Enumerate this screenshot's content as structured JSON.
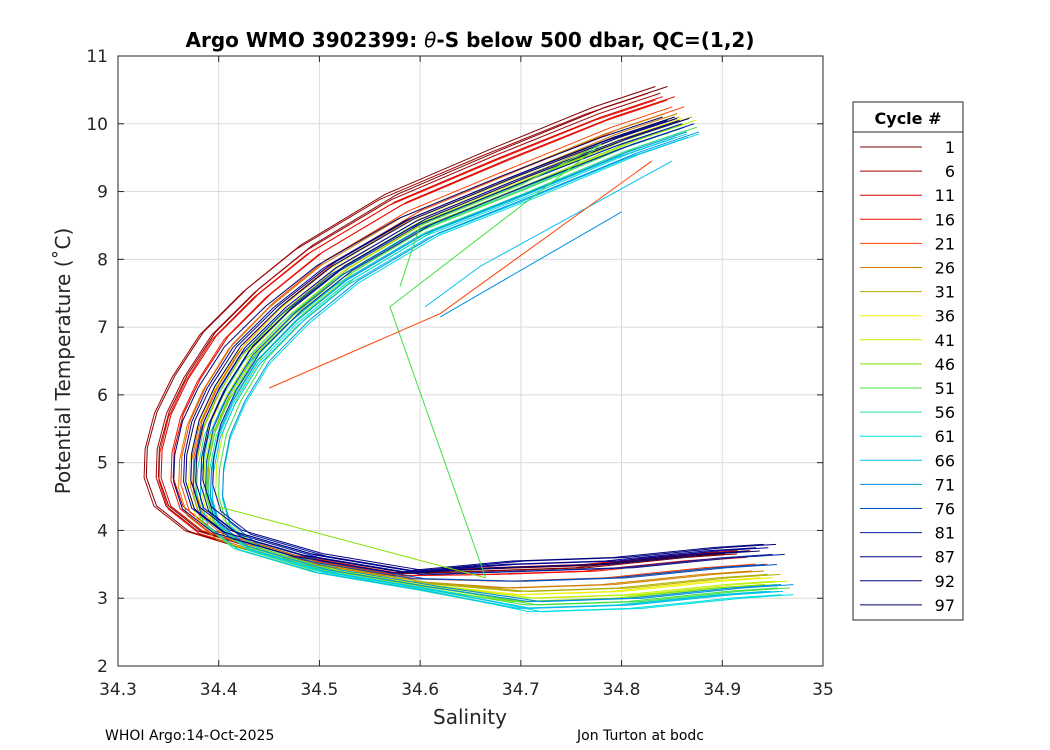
{
  "chart_data": {
    "type": "line",
    "title_prefix": "Argo WMO 3902399: ",
    "title_theta": "θ",
    "title_suffix": "-S below 500 dbar,  QC=(1,2)",
    "xlabel": "Salinity",
    "ylabel": "Potential Temperature (˚C)",
    "xlim": [
      34.3,
      35
    ],
    "ylim": [
      2,
      11
    ],
    "xticks": [
      "34.3",
      "34.4",
      "34.5",
      "34.6",
      "34.7",
      "34.8",
      "34.9",
      "35"
    ],
    "yticks": [
      "2",
      "3",
      "4",
      "5",
      "6",
      "7",
      "8",
      "9",
      "10",
      "11"
    ],
    "grid": true,
    "legend_position": "right",
    "legend_title": "Cycle #",
    "legend_entries": [
      {
        "label": "1",
        "color": "#800000"
      },
      {
        "label": "6",
        "color": "#a00000"
      },
      {
        "label": "11",
        "color": "#d80000"
      },
      {
        "label": "16",
        "color": "#f01000"
      },
      {
        "label": "21",
        "color": "#ff4000"
      },
      {
        "label": "26",
        "color": "#d08000"
      },
      {
        "label": "31",
        "color": "#b0b000"
      },
      {
        "label": "36",
        "color": "#f0f000"
      },
      {
        "label": "41",
        "color": "#c0f000"
      },
      {
        "label": "46",
        "color": "#80e000"
      },
      {
        "label": "51",
        "color": "#40e040"
      },
      {
        "label": "56",
        "color": "#20e0a0"
      },
      {
        "label": "61",
        "color": "#00e0e0"
      },
      {
        "label": "66",
        "color": "#00c0f0"
      },
      {
        "label": "71",
        "color": "#0090e0"
      },
      {
        "label": "76",
        "color": "#0050c0"
      },
      {
        "label": "81",
        "color": "#0020a0"
      },
      {
        "label": "87",
        "color": "#000090"
      },
      {
        "label": "92",
        "color": "#000080"
      },
      {
        "label": "97",
        "color": "#000070"
      }
    ],
    "series_template": [
      [
        34.86,
        10.0
      ],
      [
        34.8,
        9.7
      ],
      [
        34.7,
        9.1
      ],
      [
        34.6,
        8.5
      ],
      [
        34.52,
        7.8
      ],
      [
        34.47,
        7.2
      ],
      [
        34.43,
        6.6
      ],
      [
        34.405,
        6.0
      ],
      [
        34.39,
        5.5
      ],
      [
        34.383,
        5.0
      ],
      [
        34.382,
        4.6
      ],
      [
        34.39,
        4.2
      ],
      [
        34.42,
        3.85
      ],
      [
        34.5,
        3.5
      ],
      [
        34.6,
        3.25
      ],
      [
        34.7,
        3.15
      ],
      [
        34.8,
        3.2
      ],
      [
        34.9,
        3.35
      ],
      [
        34.95,
        3.4
      ]
    ],
    "offsets": [
      {
        "ds": -0.055,
        "dt_shallow": 0.55,
        "dt_deep": 0.25
      },
      {
        "ds": -0.045,
        "dt_shallow": 0.45,
        "dt_deep": 0.28
      },
      {
        "ds": -0.04,
        "dt_shallow": 0.4,
        "dt_deep": 0.3
      },
      {
        "ds": -0.03,
        "dt_shallow": 0.35,
        "dt_deep": 0.2
      },
      {
        "ds": -0.02,
        "dt_shallow": 0.25,
        "dt_deep": 0.1
      },
      {
        "ds": -0.01,
        "dt_shallow": 0.15,
        "dt_deep": 0.0
      },
      {
        "ds": -0.005,
        "dt_shallow": 0.1,
        "dt_deep": -0.05
      },
      {
        "ds": 0.0,
        "dt_shallow": 0.08,
        "dt_deep": -0.1
      },
      {
        "ds": 0.003,
        "dt_shallow": 0.05,
        "dt_deep": -0.15
      },
      {
        "ds": 0.005,
        "dt_shallow": 0.0,
        "dt_deep": -0.2
      },
      {
        "ds": 0.006,
        "dt_shallow": -0.05,
        "dt_deep": -0.25
      },
      {
        "ds": 0.008,
        "dt_shallow": -0.1,
        "dt_deep": -0.3
      },
      {
        "ds": 0.01,
        "dt_shallow": -0.15,
        "dt_deep": -0.35
      },
      {
        "ds": 0.012,
        "dt_shallow": -0.2,
        "dt_deep": -0.3
      },
      {
        "ds": 0.01,
        "dt_shallow": -0.12,
        "dt_deep": -0.2
      },
      {
        "ds": 0.005,
        "dt_shallow": -0.05,
        "dt_deep": 0.1
      },
      {
        "ds": 0.0,
        "dt_shallow": 0.0,
        "dt_deep": 0.25
      },
      {
        "ds": -0.005,
        "dt_shallow": 0.05,
        "dt_deep": 0.35
      },
      {
        "ds": -0.01,
        "dt_shallow": 0.08,
        "dt_deep": 0.4
      },
      {
        "ds": -0.015,
        "dt_shallow": 0.1,
        "dt_deep": 0.3
      }
    ],
    "extra_lines": [
      {
        "color": "#40e040",
        "points": [
          [
            34.58,
            7.6
          ],
          [
            34.6,
            8.5
          ],
          [
            34.7,
            9.1
          ],
          [
            34.78,
            9.7
          ],
          [
            34.57,
            7.3
          ],
          [
            34.665,
            3.3
          ]
        ]
      },
      {
        "color": "#80e000",
        "points": [
          [
            34.4,
            4.35
          ],
          [
            34.665,
            3.3
          ]
        ]
      },
      {
        "color": "#00c0f0",
        "points": [
          [
            34.605,
            7.3
          ],
          [
            34.66,
            7.9
          ],
          [
            34.85,
            9.45
          ]
        ]
      },
      {
        "color": "#0090e0",
        "points": [
          [
            34.62,
            7.15
          ],
          [
            34.8,
            8.7
          ]
        ]
      },
      {
        "color": "#ff4000",
        "points": [
          [
            34.45,
            6.1
          ],
          [
            34.62,
            7.2
          ],
          [
            34.83,
            9.45
          ]
        ]
      }
    ]
  },
  "footer": {
    "left": "WHOI Argo:14-Oct-2025",
    "right": "Jon Turton at bodc"
  }
}
